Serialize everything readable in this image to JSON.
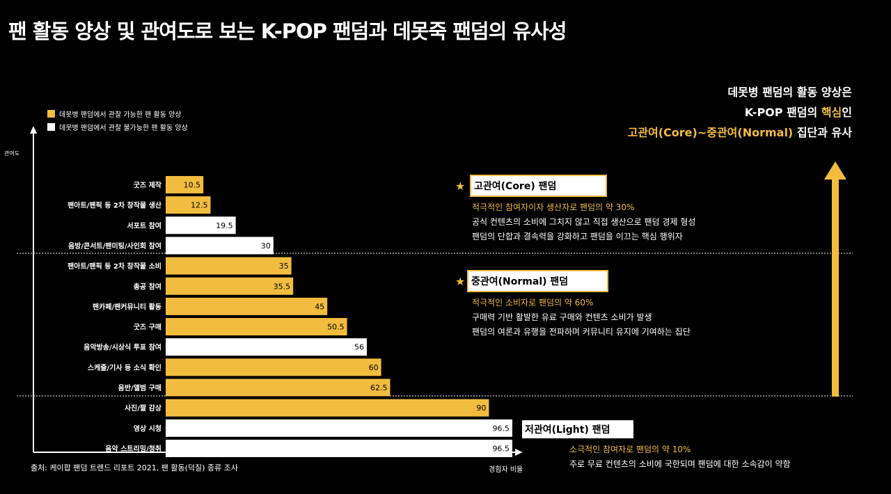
{
  "title": "팬 활동 양상 및 관여도로 보는 K-POP 팬덤과 데못죽 팬덤의 유사성",
  "legend": [
    {
      "label": "데못병 팬덤에서 관찰 가능한 팬 활동 양상",
      "color": "#f2bc3f"
    },
    {
      "label": "데못병 팬덤에서 관찰 불가능한 팬 활동 양상",
      "color": "#ffffff"
    }
  ],
  "colors": {
    "accent": "#f2bc3f",
    "white": "#ffffff",
    "background": "#000000"
  },
  "chart_data": {
    "type": "bar",
    "orientation": "horizontal",
    "ylabel": "관여도",
    "xlabel": "경험자 비율",
    "xlim": [
      0,
      100
    ],
    "categories": [
      "굿즈 제작",
      "팬아트/팬픽 등 2차 창작물 생산",
      "서포트 참여",
      "음방/콘서트/팬미팅/사인회 참여",
      "팬아트/팬픽 등 2차 창작물 소비",
      "총공 참여",
      "팬카페/팬커뮤니티 활동",
      "굿즈 구매",
      "음악방송/시상식 투표 참여",
      "스케줄/기사 등 소식 확인",
      "음반/앨범 구매",
      "사진/짤 감상",
      "영상 시청",
      "음악 스트리밍/청취"
    ],
    "values": [
      10.5,
      12.5,
      19.5,
      30,
      35,
      35.5,
      45,
      50.5,
      56,
      60,
      62.5,
      90,
      96.5,
      96.5
    ],
    "value_labels": [
      "10.5",
      "12.5",
      "19.5",
      "30",
      "35",
      "35.5",
      "45",
      "50.5",
      "56",
      "60",
      "62.5",
      "90",
      "96.5",
      "96.5"
    ],
    "observable": [
      true,
      true,
      false,
      false,
      true,
      true,
      true,
      true,
      false,
      true,
      true,
      true,
      false,
      false
    ],
    "groups": [
      "고관여(Core) 팬덤",
      "중관여(Normal) 팬덤",
      "저관여(Light) 팬덤"
    ]
  },
  "summary": {
    "line1": "데못병 팬덤의 활동 양상은",
    "line2_a": "K-POP 팬덤의 ",
    "line2_b": "핵심",
    "line2_c": "인",
    "line3_a": "고관여(Core)~중관여(Normal)",
    "line3_b": " 집단과 유사"
  },
  "groups": {
    "core": {
      "star": "★",
      "label": "고관여(Core) 팬덤",
      "highlight": "적극적인 참여자이자 생산자로 팬덤의 약 30%",
      "lines": [
        "공식 컨텐츠의 소비에 그치지 않고 직접 생산으로 팬덤 경제 형성",
        "팬덤의 단합과 결속력을 강화하고 팬덤을 이끄는 핵심 행위자"
      ]
    },
    "normal": {
      "star": "★",
      "label": "중관여(Normal) 팬덤",
      "highlight": "적극적인 소비자로 팬덤의 약 60%",
      "lines": [
        "구매력 기반 활발한 유료 구매와 컨텐츠 소비가 발생",
        "팬덤의 여론과 유행을 전파하며 커뮤니티 유지에 기여하는 집단"
      ]
    },
    "light": {
      "label": "저관여(Light) 팬덤",
      "highlight": "소극적인 참여자로 팬덤의 약 10%",
      "lines": [
        "주로 무료 컨텐츠의 소비에 국한되며 팬덤에 대한 소속감이 약함"
      ]
    }
  },
  "source": "출처: 케이팝 팬덤 트렌드 리포트 2021, 팬 활동(덕질) 종류 조사"
}
